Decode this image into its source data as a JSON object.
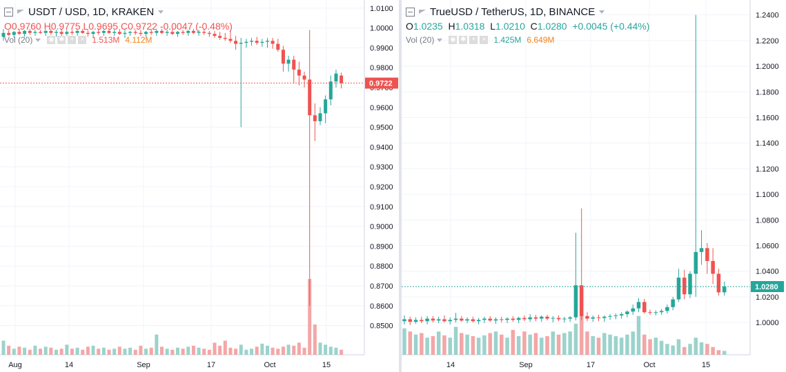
{
  "colors": {
    "up": "#26a69a",
    "down": "#ef5350",
    "vol_up": "#9bd3cc",
    "vol_down": "#f4a6a6",
    "grid": "#f0f3fa",
    "axis_text": "#131722"
  },
  "left": {
    "title": "USDT / USD, 1D, KRAKEN",
    "ohlc": {
      "o_label": "O",
      "o": "0.9760",
      "h_label": "H",
      "h": "0.9775",
      "l_label": "L",
      "l": "0.9695",
      "c_label": "C",
      "c": "0.9722",
      "change": "-0.0047 (-0.48%)"
    },
    "vol": {
      "label": "Vol (20)",
      "v1": "1.513M",
      "v2": "4.112M"
    },
    "price_badge": "0.9722",
    "y_ticks": [
      "1.0100",
      "1.0000",
      "0.9900",
      "0.9800",
      "0.9700",
      "0.9600",
      "0.9500",
      "0.9400",
      "0.9300",
      "0.9200",
      "0.9100",
      "0.9000",
      "0.8900",
      "0.8800",
      "0.8700",
      "0.8600",
      "0.8500"
    ],
    "x_ticks": [
      "Aug",
      "14",
      "Sep",
      "17",
      "Oct",
      "15"
    ]
  },
  "right": {
    "title": "TrueUSD / TetherUS, 1D, BINANCE",
    "ohlc": {
      "o_label": "O",
      "o": "1.0235",
      "h_label": "H",
      "h": "1.0318",
      "l_label": "L",
      "l": "1.0210",
      "c_label": "C",
      "c": "1.0280",
      "change": "+0.0045 (+0.44%)"
    },
    "vol": {
      "label": "Vol (20)",
      "v1": "1.425M",
      "v2": "6.649M"
    },
    "price_badge": "1.0280",
    "y_ticks": [
      "1.2400",
      "1.2200",
      "1.2000",
      "1.1800",
      "1.1600",
      "1.1400",
      "1.1200",
      "1.1000",
      "1.0800",
      "1.0600",
      "1.0400",
      "1.0200",
      "1.0000"
    ],
    "x_ticks": [
      "14",
      "Sep",
      "17",
      "Oct",
      "15"
    ]
  },
  "chart_data": [
    {
      "type": "candlestick",
      "title": "USDT / USD, 1D, KRAKEN",
      "ylim": [
        0.845,
        1.012
      ],
      "last_price": 0.9722,
      "x_axis_ticks": [
        "Aug",
        "14",
        "Sep",
        "17",
        "Oct",
        "15"
      ],
      "series": [
        {
          "name": "USDT/USD",
          "ohlc": [
            [
              0.9955,
              0.9995,
              0.9935,
              0.9975
            ],
            [
              0.9975,
              0.999,
              0.996,
              0.9965
            ],
            [
              0.9965,
              0.9985,
              0.995,
              0.998
            ],
            [
              0.998,
              0.9995,
              0.9965,
              0.997
            ],
            [
              0.997,
              0.999,
              0.9955,
              0.9985
            ],
            [
              0.9985,
              0.9995,
              0.9965,
              0.9975
            ],
            [
              0.9975,
              0.999,
              0.996,
              0.998
            ],
            [
              0.998,
              0.999,
              0.997,
              0.9975
            ],
            [
              0.9975,
              0.999,
              0.996,
              0.9985
            ],
            [
              0.9985,
              0.9995,
              0.9965,
              0.9975
            ],
            [
              0.9975,
              0.999,
              0.9955,
              0.998
            ],
            [
              0.998,
              0.9995,
              0.996,
              0.997
            ],
            [
              0.997,
              0.999,
              0.996,
              0.998
            ],
            [
              0.998,
              0.999,
              0.9965,
              0.9975
            ],
            [
              0.9975,
              0.999,
              0.996,
              0.9985
            ],
            [
              0.9985,
              0.9995,
              0.997,
              0.9975
            ],
            [
              0.9975,
              0.999,
              0.9955,
              0.997
            ],
            [
              0.997,
              0.9985,
              0.995,
              0.998
            ],
            [
              0.998,
              0.9995,
              0.9965,
              0.9975
            ],
            [
              0.9975,
              0.999,
              0.996,
              0.9985
            ],
            [
              0.9985,
              0.9995,
              0.997,
              0.9975
            ],
            [
              0.9975,
              0.999,
              0.996,
              0.998
            ],
            [
              0.998,
              0.9995,
              0.9965,
              0.997
            ],
            [
              0.997,
              0.999,
              0.995,
              0.9975
            ],
            [
              0.9975,
              0.9985,
              0.996,
              0.998
            ],
            [
              0.998,
              0.999,
              0.9965,
              0.9975
            ],
            [
              0.9975,
              0.999,
              0.996,
              0.997
            ],
            [
              0.997,
              0.9985,
              0.9955,
              0.998
            ],
            [
              0.998,
              0.9995,
              0.9965,
              0.9975
            ],
            [
              0.9975,
              0.999,
              0.996,
              0.9985
            ],
            [
              0.9985,
              0.9995,
              0.997,
              0.9975
            ],
            [
              0.9975,
              0.999,
              0.996,
              0.998
            ],
            [
              0.998,
              0.9995,
              0.9965,
              0.997
            ],
            [
              0.997,
              0.9985,
              0.9955,
              0.998
            ],
            [
              0.998,
              0.999,
              0.9965,
              0.9975
            ],
            [
              0.9975,
              0.999,
              0.996,
              0.9985
            ],
            [
              0.9985,
              0.9995,
              0.997,
              0.9975
            ],
            [
              0.9975,
              0.999,
              0.996,
              0.998
            ],
            [
              0.998,
              0.9995,
              0.9965,
              0.9975
            ],
            [
              0.9975,
              0.9985,
              0.9955,
              0.997
            ],
            [
              0.997,
              0.9985,
              0.995,
              0.996
            ],
            [
              0.996,
              0.998,
              0.994,
              0.995
            ],
            [
              0.995,
              0.9975,
              0.9935,
              0.9945
            ],
            [
              0.9945,
              0.999,
              0.9925,
              0.9935
            ],
            [
              0.9935,
              0.996,
              0.989,
              0.992
            ],
            [
              0.992,
              0.995,
              0.95,
              0.9925
            ],
            [
              0.9925,
              0.9945,
              0.99,
              0.993
            ],
            [
              0.993,
              0.995,
              0.991,
              0.9935
            ],
            [
              0.9935,
              0.9955,
              0.9915,
              0.9925
            ],
            [
              0.9925,
              0.9945,
              0.9905,
              0.993
            ],
            [
              0.993,
              0.995,
              0.99,
              0.9935
            ],
            [
              0.9935,
              0.995,
              0.9895,
              0.992
            ],
            [
              0.992,
              0.9945,
              0.988,
              0.989
            ],
            [
              0.989,
              0.991,
              0.978,
              0.982
            ],
            [
              0.982,
              0.986,
              0.978,
              0.984
            ],
            [
              0.984,
              0.986,
              0.972,
              0.979
            ],
            [
              0.979,
              0.983,
              0.971,
              0.976
            ],
            [
              0.976,
              0.978,
              0.97,
              0.974
            ],
            [
              0.974,
              0.999,
              0.86,
              0.956
            ],
            [
              0.956,
              0.962,
              0.943,
              0.953
            ],
            [
              0.953,
              0.96,
              0.951,
              0.957
            ],
            [
              0.957,
              0.966,
              0.952,
              0.964
            ],
            [
              0.964,
              0.976,
              0.961,
              0.973
            ],
            [
              0.973,
              0.979,
              0.97,
              0.977
            ],
            [
              0.976,
              0.9775,
              0.9695,
              0.9722
            ]
          ]
        }
      ],
      "volume_scale_note": "relative heights"
    },
    {
      "type": "candlestick",
      "title": "TrueUSD / TetherUS, 1D, BINANCE",
      "ylim": [
        0.985,
        1.2495
      ],
      "last_price": 1.028,
      "x_axis_ticks": [
        "14",
        "Sep",
        "17",
        "Oct",
        "15"
      ],
      "series": [
        {
          "name": "TUSD/USDT",
          "ohlc": [
            [
              1.001,
              1.0055,
              0.9985,
              1.0025
            ],
            [
              1.0025,
              1.0045,
              0.998,
              1.0005
            ],
            [
              1.0005,
              1.004,
              0.999,
              1.002
            ],
            [
              1.002,
              1.0045,
              0.9995,
              1.001
            ],
            [
              1.001,
              1.005,
              0.9985,
              1.003
            ],
            [
              1.003,
              1.005,
              1.0,
              1.0015
            ],
            [
              1.0015,
              1.0045,
              0.9995,
              1.0025
            ],
            [
              1.0025,
              1.0055,
              1.0,
              1.001
            ],
            [
              1.001,
              1.004,
              0.9985,
              1.002
            ],
            [
              1.002,
              1.0075,
              1.0,
              1.003
            ],
            [
              1.003,
              1.005,
              1.0005,
              1.0015
            ],
            [
              1.0015,
              1.004,
              0.9995,
              1.0025
            ],
            [
              1.0025,
              1.0045,
              1.0,
              1.001
            ],
            [
              1.001,
              1.0035,
              0.9985,
              1.002
            ],
            [
              1.002,
              1.0045,
              0.9995,
              1.003
            ],
            [
              1.003,
              1.005,
              1.0005,
              1.0015
            ],
            [
              1.0015,
              1.004,
              0.999,
              1.0025
            ],
            [
              1.0025,
              1.0045,
              1.0,
              1.002
            ],
            [
              1.002,
              1.004,
              0.9995,
              1.003
            ],
            [
              1.003,
              1.005,
              1.0005,
              1.002
            ],
            [
              1.002,
              1.0045,
              0.9995,
              1.0035
            ],
            [
              1.0035,
              1.0055,
              1.001,
              1.0025
            ],
            [
              1.0025,
              1.0065,
              1.0005,
              1.004
            ],
            [
              1.004,
              1.006,
              1.001,
              1.003
            ],
            [
              1.003,
              1.0055,
              1.0005,
              1.0045
            ],
            [
              1.0045,
              1.006,
              1.0015,
              1.003
            ],
            [
              1.003,
              1.005,
              1.0,
              1.0035
            ],
            [
              1.0035,
              1.0055,
              1.001,
              1.0025
            ],
            [
              1.0025,
              1.0045,
              1.0,
              1.003
            ],
            [
              1.003,
              1.005,
              1.0005,
              1.004
            ],
            [
              1.004,
              1.07,
              1.0015,
              1.029
            ],
            [
              1.029,
              1.089,
              1.002,
              1.005
            ],
            [
              1.005,
              1.008,
              1.001,
              1.003
            ],
            [
              1.003,
              1.0055,
              1.0005,
              1.004
            ],
            [
              1.004,
              1.006,
              1.001,
              1.0035
            ],
            [
              1.0035,
              1.0055,
              1.0005,
              1.0045
            ],
            [
              1.0045,
              1.0065,
              1.002,
              1.005
            ],
            [
              1.005,
              1.007,
              1.0025,
              1.0055
            ],
            [
              1.0055,
              1.008,
              1.003,
              1.0065
            ],
            [
              1.0065,
              1.0095,
              1.004,
              1.0085
            ],
            [
              1.0085,
              1.014,
              1.006,
              1.011
            ],
            [
              1.011,
              1.019,
              1.008,
              1.016
            ],
            [
              1.016,
              1.0185,
              1.007,
              1.008
            ],
            [
              1.008,
              1.01,
              1.006,
              1.0075
            ],
            [
              1.0075,
              1.0095,
              1.0055,
              1.008
            ],
            [
              1.008,
              1.0105,
              1.006,
              1.009
            ],
            [
              1.009,
              1.014,
              1.007,
              1.012
            ],
            [
              1.012,
              1.02,
              1.0095,
              1.018
            ],
            [
              1.018,
              1.042,
              1.016,
              1.035
            ],
            [
              1.035,
              1.041,
              1.018,
              1.022
            ],
            [
              1.022,
              1.04,
              1.019,
              1.038
            ],
            [
              1.038,
              1.24,
              1.02,
              1.055
            ],
            [
              1.055,
              1.072,
              1.045,
              1.058
            ],
            [
              1.058,
              1.062,
              1.038,
              1.048
            ],
            [
              1.048,
              1.058,
              1.03,
              1.038
            ],
            [
              1.038,
              1.042,
              1.021,
              1.0235
            ],
            [
              1.0235,
              1.0318,
              1.021,
              1.028
            ]
          ]
        }
      ]
    }
  ]
}
